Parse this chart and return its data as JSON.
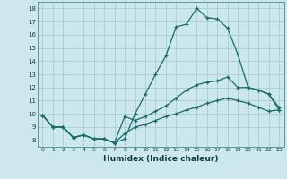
{
  "xlabel": "Humidex (Indice chaleur)",
  "bg_color": "#cce8ec",
  "grid_color": "#a0c8cc",
  "line_color": "#1a6b6b",
  "xlim": [
    -0.5,
    23.5
  ],
  "ylim": [
    7.5,
    18.5
  ],
  "xticks": [
    0,
    1,
    2,
    3,
    4,
    5,
    6,
    7,
    8,
    9,
    10,
    11,
    12,
    13,
    14,
    15,
    16,
    17,
    18,
    19,
    20,
    21,
    22,
    23
  ],
  "yticks": [
    8,
    9,
    10,
    11,
    12,
    13,
    14,
    15,
    16,
    17,
    18
  ],
  "line1_x": [
    0,
    1,
    2,
    3,
    4,
    5,
    6,
    7,
    8,
    9,
    10,
    11,
    12,
    13,
    14,
    15,
    16,
    17,
    18,
    19,
    20,
    21,
    22,
    23
  ],
  "line1_y": [
    9.9,
    9.0,
    9.0,
    8.2,
    8.4,
    8.1,
    8.1,
    7.8,
    8.1,
    10.0,
    11.5,
    13.0,
    14.4,
    16.6,
    16.8,
    18.0,
    17.3,
    17.2,
    16.5,
    14.5,
    12.0,
    11.8,
    11.5,
    10.5
  ],
  "line2_x": [
    0,
    1,
    2,
    3,
    4,
    5,
    6,
    7,
    8,
    9,
    10,
    11,
    12,
    13,
    14,
    15,
    16,
    17,
    18,
    19,
    20,
    21,
    22,
    23
  ],
  "line2_y": [
    9.9,
    9.0,
    9.0,
    8.2,
    8.4,
    8.1,
    8.1,
    7.8,
    9.8,
    9.5,
    9.8,
    10.2,
    10.6,
    11.2,
    11.8,
    12.2,
    12.4,
    12.5,
    12.8,
    12.0,
    12.0,
    11.8,
    11.5,
    10.3
  ],
  "line3_x": [
    0,
    1,
    2,
    3,
    4,
    5,
    6,
    7,
    8,
    9,
    10,
    11,
    12,
    13,
    14,
    15,
    16,
    17,
    18,
    19,
    20,
    21,
    22,
    23
  ],
  "line3_y": [
    9.9,
    9.0,
    9.0,
    8.2,
    8.4,
    8.1,
    8.1,
    7.8,
    8.5,
    9.0,
    9.2,
    9.5,
    9.8,
    10.0,
    10.3,
    10.5,
    10.8,
    11.0,
    11.2,
    11.0,
    10.8,
    10.5,
    10.2,
    10.3
  ]
}
